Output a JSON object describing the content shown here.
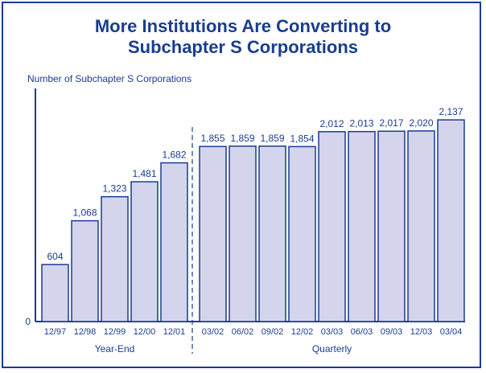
{
  "chart_data": {
    "type": "bar",
    "title": "More Institutions Are Converting to Subchapter S Corporations",
    "title_lines": [
      "More Institutions Are Converting to",
      "Subchapter S Corporations"
    ],
    "ylabel": "Number of Subchapter S Corporations",
    "y_tick_labels": [
      "0"
    ],
    "ylim": [
      0,
      2300
    ],
    "categories": [
      "12/97",
      "12/98",
      "12/99",
      "12/00",
      "12/01",
      "03/02",
      "06/02",
      "09/02",
      "12/02",
      "03/03",
      "06/03",
      "09/03",
      "12/03",
      "03/04"
    ],
    "values": [
      604,
      1068,
      1323,
      1481,
      1682,
      1855,
      1859,
      1859,
      1854,
      2012,
      2013,
      2017,
      2020,
      2137
    ],
    "value_labels": [
      "604",
      "1,068",
      "1,323",
      "1,481",
      "1,682",
      "1,855",
      "1,859",
      "1,859",
      "1,854",
      "2,012",
      "2,013",
      "2,017",
      "2,020",
      "2,137"
    ],
    "groups": [
      {
        "label": "Year-End",
        "count": 5
      },
      {
        "label": "Quarterly",
        "count": 9
      }
    ],
    "grid": false,
    "legend": "none"
  },
  "colors": {
    "bar_fill": "#d4d5ec",
    "bar_stroke": "#1a3d8f",
    "text": "#1a3d8f",
    "border": "#1a3d8f"
  }
}
